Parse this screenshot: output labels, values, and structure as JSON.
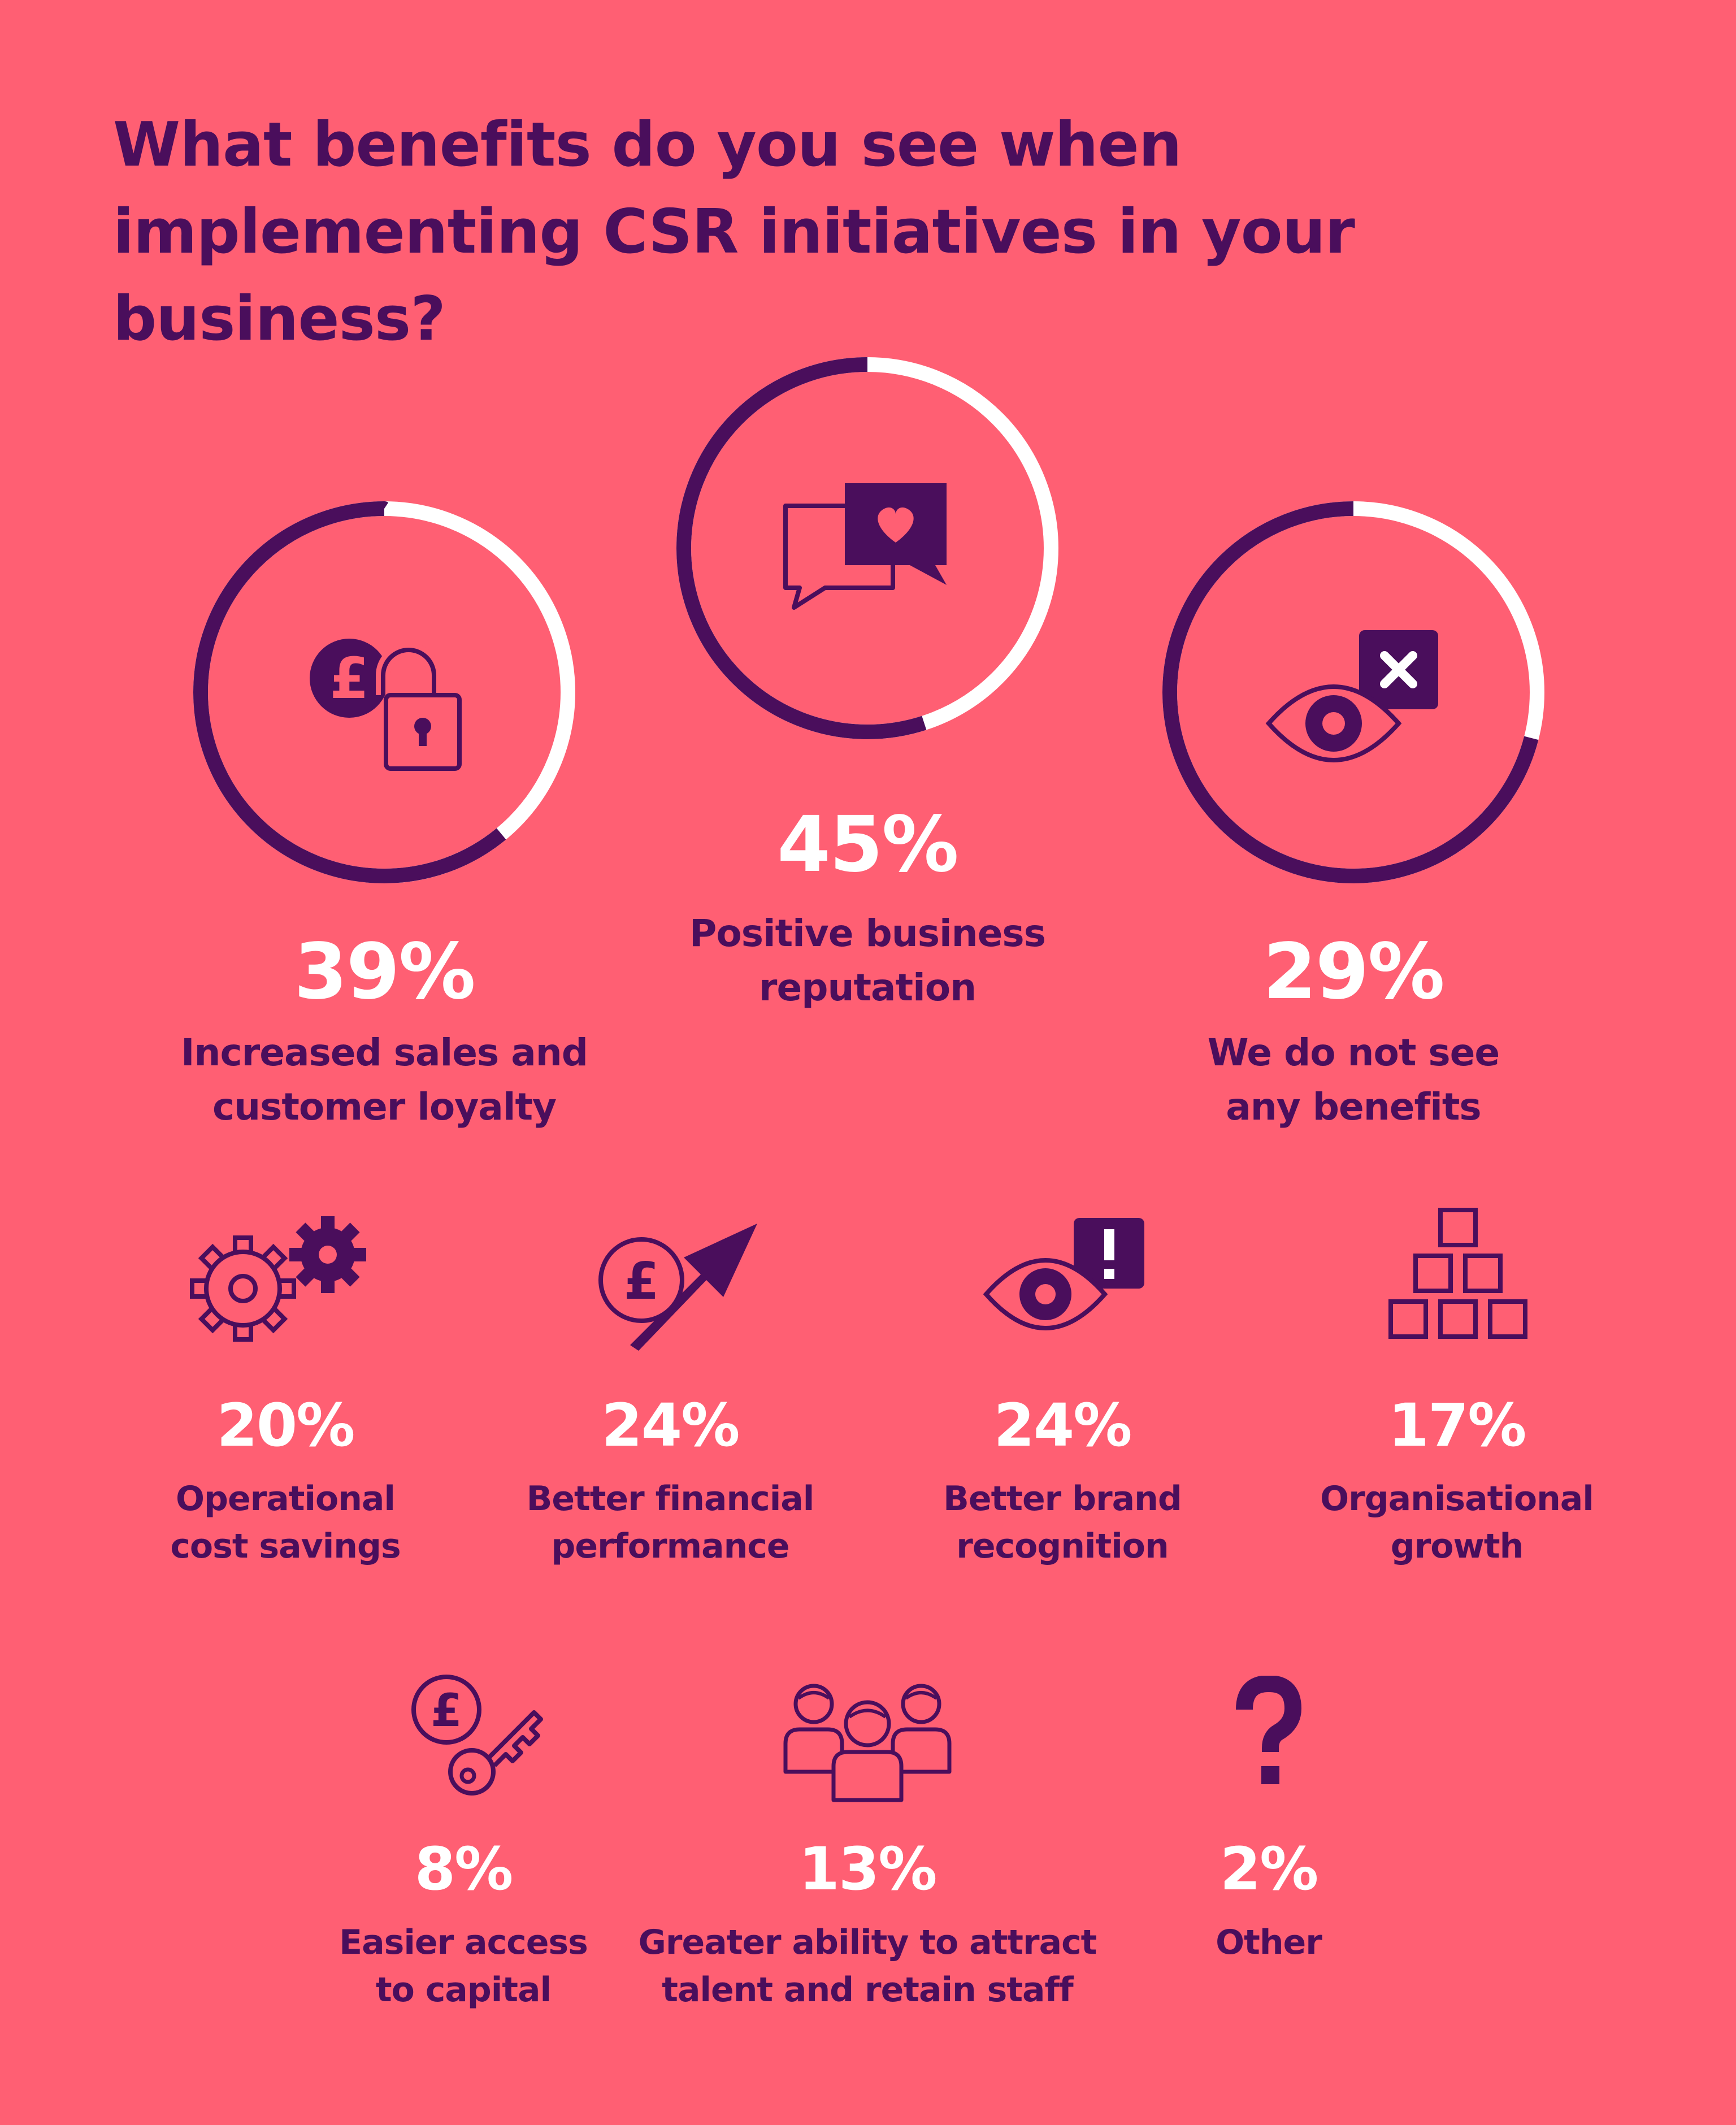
{
  "title": "What benefits do you see when implementing CSR initiatives in your business?",
  "colors": {
    "background": "#FF5F73",
    "primary": "#4A0E5C",
    "remainder": "#FFFFFF"
  },
  "chart_data": {
    "type": "donut",
    "title": "What benefits do you see when implementing CSR initiatives in your business?",
    "unit": "%",
    "items": [
      {
        "key": "sales",
        "label": "Increased sales and\ncustomer loyalty",
        "value": 39,
        "pct_text": "39%",
        "icon": "pound-lock-icon",
        "ring": true
      },
      {
        "key": "reputation",
        "label": "Positive business\nreputation",
        "value": 45,
        "pct_text": "45%",
        "icon": "speech-heart-icon",
        "ring": true
      },
      {
        "key": "none",
        "label": "We do not see\nany benefits",
        "value": 29,
        "pct_text": "29%",
        "icon": "eye-x-icon",
        "ring": true
      },
      {
        "key": "costs",
        "label": "Operational\ncost savings",
        "value": 20,
        "pct_text": "20%",
        "icon": "gears-icon",
        "ring": false
      },
      {
        "key": "finance",
        "label": "Better financial\nperformance",
        "value": 24,
        "pct_text": "24%",
        "icon": "pound-arrow-icon",
        "ring": false
      },
      {
        "key": "brand",
        "label": "Better brand\nrecognition",
        "value": 24,
        "pct_text": "24%",
        "icon": "eye-alert-icon",
        "ring": false
      },
      {
        "key": "growth",
        "label": "Organisational\ngrowth",
        "value": 17,
        "pct_text": "17%",
        "icon": "boxes-pyramid-icon",
        "ring": false
      },
      {
        "key": "capital",
        "label": "Easier access\nto capital",
        "value": 8,
        "pct_text": "8%",
        "icon": "pound-key-icon",
        "ring": false
      },
      {
        "key": "talent",
        "label": "Greater ability to attract\ntalent and retain staff",
        "value": 13,
        "pct_text": "13%",
        "icon": "people-group-icon",
        "ring": false
      },
      {
        "key": "other",
        "label": "Other",
        "value": 2,
        "pct_text": "2%",
        "icon": "question-mark-icon",
        "ring": false
      }
    ]
  }
}
